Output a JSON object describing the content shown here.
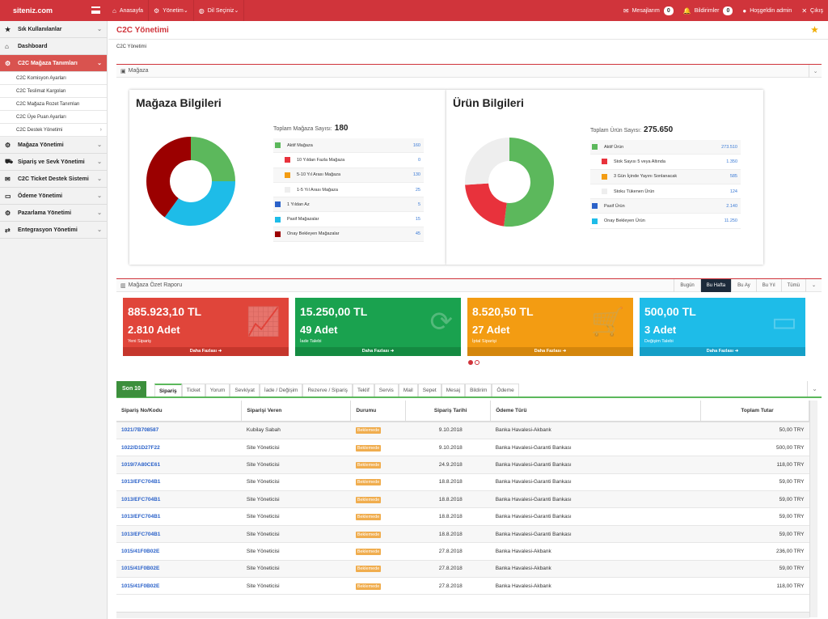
{
  "app": {
    "brand": "siteniz.com"
  },
  "topnav": [
    {
      "label": "Anasayfa",
      "icon": "home-icon",
      "glyph": "⌂"
    },
    {
      "label": "Yönetim",
      "icon": "gear-icon",
      "glyph": "⚙"
    },
    {
      "label": "Dil Seçiniz",
      "icon": "globe-icon",
      "glyph": "◍"
    }
  ],
  "topright": {
    "messages": "Mesajlarım",
    "messages_count": "0",
    "notifications": "Bildirimler",
    "notifications_count": "0",
    "welcome": "Hoşgeldin admin",
    "logout": "Çıkış"
  },
  "sidebar": {
    "items_before": [
      {
        "label": "Sık Kullanılanlar",
        "icon": "star-icon",
        "glyph": "★"
      },
      {
        "label": "Dashboard",
        "icon": "home-icon",
        "glyph": "⌂"
      },
      {
        "label": "C2C Mağaza Tanımları",
        "icon": "gear-icon",
        "glyph": "⚙"
      }
    ],
    "subitems": [
      "C2C Komisyon Ayarları",
      "C2C Teslimat Kargoları",
      "C2C Mağaza Rozet Tanımları",
      "C2C Üye Puan Ayarları",
      "C2C Destek Yönetimi"
    ],
    "items_after": [
      {
        "label": "Mağaza Yönetimi",
        "icon": "gear-icon",
        "glyph": "⚙"
      },
      {
        "label": "Sipariş ve Sevk Yönetimi",
        "icon": "cart-icon",
        "glyph": "⛟"
      },
      {
        "label": "C2C Ticket Destek Sistemi",
        "icon": "ticket-icon",
        "glyph": "✉"
      },
      {
        "label": "Ödeme Yönetimi",
        "icon": "card-icon",
        "glyph": "▭"
      },
      {
        "label": "Pazarlama Yönetimi",
        "icon": "gear-icon",
        "glyph": "⚙"
      },
      {
        "label": "Entegrasyon Yönetimi",
        "icon": "exchange-icon",
        "glyph": "⇄"
      }
    ]
  },
  "page": {
    "title": "C2C Yönetimi",
    "breadcrumb": "C2C Yönetimi"
  },
  "store_panel": {
    "title": "Mağaza",
    "store_info": {
      "heading": "Mağaza Bilgileri",
      "total_label": "Toplam Mağaza Sayısı:",
      "total_value": "180",
      "legend": [
        {
          "label": "Aktif Mağaza",
          "value": "160",
          "color": "#5cb85c",
          "sub": false
        },
        {
          "label": "10 Yıldan Fazla Mağaza",
          "value": "0",
          "color": "#e8323c",
          "sub": true
        },
        {
          "label": "5-10 Yıl Arası Mağaza",
          "value": "130",
          "color": "#f39c12",
          "sub": true
        },
        {
          "label": "1-5 Yıl Arası Mağaza",
          "value": "25",
          "color": "#eeeeee",
          "sub": true
        },
        {
          "label": "1 Yıldan Az",
          "value": "5",
          "color": "#2b62c9",
          "sub": false
        },
        {
          "label": "Pasif Mağazalar",
          "value": "15",
          "color": "#1ebce8",
          "sub": false
        },
        {
          "label": "Onay Bekleyen Mağazalar",
          "value": "45",
          "color": "#9b0000",
          "sub": false
        }
      ],
      "donut": [
        {
          "value": 0.25,
          "color": "#5cb85c"
        },
        {
          "value": 0.35,
          "color": "#1ebce8"
        },
        {
          "value": 0.4,
          "color": "#9b0000"
        }
      ]
    },
    "product_info": {
      "heading": "Ürün Bilgileri",
      "total_label": "Toplam Ürün Sayısı:",
      "total_value": "275.650",
      "legend": [
        {
          "label": "Aktif Ürün",
          "value": "273.510",
          "color": "#5cb85c",
          "sub": false
        },
        {
          "label": "Stok Sayısı 5 veya Altında",
          "value": "1.350",
          "color": "#e8323c",
          "sub": true
        },
        {
          "label": "3 Gün İçinde Yayını Sonlanacak",
          "value": "585",
          "color": "#f39c12",
          "sub": true
        },
        {
          "label": "Stoku Tükenen Ürün",
          "value": "124",
          "color": "#eeeeee",
          "sub": true
        },
        {
          "label": "Pasif Ürün",
          "value": "2.140",
          "color": "#2b62c9",
          "sub": false
        },
        {
          "label": "Onay Bekleyen Ürün",
          "value": "11.250",
          "color": "#1ebce8",
          "sub": false
        }
      ],
      "donut": [
        {
          "value": 0.52,
          "color": "#5cb85c"
        },
        {
          "value": 0.22,
          "color": "#e8323c"
        },
        {
          "value": 0.26,
          "color": "#eeeeee"
        }
      ]
    }
  },
  "report_panel": {
    "title": "Mağaza Özet Raporu",
    "ranges": [
      "Bugün",
      "Bu Hafta",
      "Bu Ay",
      "Bu Yıl",
      "Tümü"
    ],
    "selected_range": "Bu Hafta",
    "cards": [
      {
        "amount": "885.923,10 TL",
        "count": "2.810 Adet",
        "label": "Yeni Sipariş",
        "more": "Daha Fazlası",
        "color": "#e0453a",
        "dark": "#c5362c",
        "icon": "chart-icon",
        "glyph": "📈"
      },
      {
        "amount": "15.250,00 TL",
        "count": "49 Adet",
        "label": "İade Talebi",
        "more": "Daha Fazlası",
        "color": "#1aa24f",
        "dark": "#148a41",
        "icon": "refresh-icon",
        "glyph": "⟳"
      },
      {
        "amount": "8.520,50 TL",
        "count": "27 Adet",
        "label": "İptal Siparişi",
        "more": "Daha Fazlası",
        "color": "#f39c12",
        "dark": "#d4860c",
        "icon": "cart-icon",
        "glyph": "🛒"
      },
      {
        "amount": "500,00 TL",
        "count": "3 Adet",
        "label": "Değişim Talebi",
        "more": "Daha Fazlası",
        "color": "#1ebce8",
        "dark": "#159fc7",
        "icon": "card-icon",
        "glyph": "▭"
      }
    ]
  },
  "orders": {
    "son10": "Son 10",
    "tabs": [
      "Sipariş",
      "Ticket",
      "Yorum",
      "Sevkiyat",
      "İade / Değişim",
      "Rezerve / Sipariş",
      "Teklif",
      "Servis",
      "Mail",
      "Sepet",
      "Mesaj",
      "Bildirim",
      "Ödeme"
    ],
    "columns": [
      "Sipariş No/Kodu",
      "Siparişi Veren",
      "Durumu",
      "Sipariş Tarihi",
      "Ödeme Türü",
      "Toplam Tutar"
    ],
    "rows": [
      [
        "1021/7B708587",
        "Kubilay Sabah",
        "Beklemede",
        "9.10.2018",
        "Banka Havalesi-Akbank",
        "50,00 TRY"
      ],
      [
        "1022/D1D27F22",
        "Site Yöneticisi",
        "Beklemede",
        "9.10.2018",
        "Banka Havalesi-Garanti Bankası",
        "500,00 TRY"
      ],
      [
        "1019/7A80CE61",
        "Site Yöneticisi",
        "Beklemede",
        "24.9.2018",
        "Banka Havalesi-Garanti Bankası",
        "118,00 TRY"
      ],
      [
        "1013/EFC704B1",
        "Site Yöneticisi",
        "Beklemede",
        "18.8.2018",
        "Banka Havalesi-Garanti Bankası",
        "59,00 TRY"
      ],
      [
        "1013/EFC704B1",
        "Site Yöneticisi",
        "Beklemede",
        "18.8.2018",
        "Banka Havalesi-Garanti Bankası",
        "59,00 TRY"
      ],
      [
        "1013/EFC704B1",
        "Site Yöneticisi",
        "Beklemede",
        "18.8.2018",
        "Banka Havalesi-Garanti Bankası",
        "59,00 TRY"
      ],
      [
        "1013/EFC704B1",
        "Site Yöneticisi",
        "Beklemede",
        "18.8.2018",
        "Banka Havalesi-Garanti Bankası",
        "59,00 TRY"
      ],
      [
        "1015/41F0B02E",
        "Site Yöneticisi",
        "Beklemede",
        "27.8.2018",
        "Banka Havalesi-Akbank",
        "236,00 TRY"
      ],
      [
        "1015/41F0B02E",
        "Site Yöneticisi",
        "Beklemede",
        "27.8.2018",
        "Banka Havalesi-Akbank",
        "59,00 TRY"
      ],
      [
        "1015/41F0B02E",
        "Site Yöneticisi",
        "Beklemede",
        "27.8.2018",
        "Banka Havalesi-Akbank",
        "118,00 TRY"
      ]
    ]
  }
}
